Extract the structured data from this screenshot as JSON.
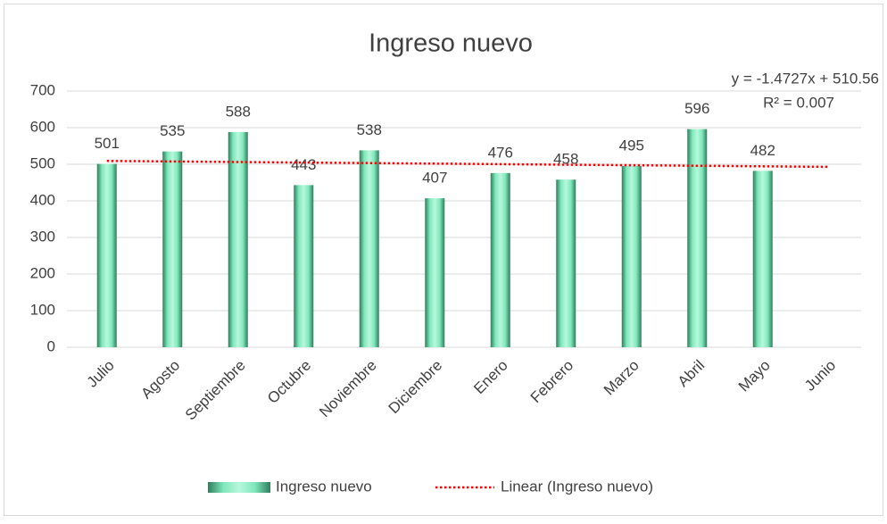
{
  "chart_data": {
    "type": "bar",
    "title": "Ingreso nuevo",
    "categories": [
      "Julio",
      "Agosto",
      "Septiembre",
      "Octubre",
      "Noviembre",
      "Diciembre",
      "Enero",
      "Febrero",
      "Marzo",
      "Abril",
      "Mayo",
      "Junio"
    ],
    "series": [
      {
        "name": "Ingreso nuevo",
        "color": "#5fd9a4",
        "values": [
          501,
          535,
          588,
          443,
          538,
          407,
          476,
          458,
          495,
          596,
          482,
          null
        ]
      }
    ],
    "trendline": {
      "name": "Linear (Ingreso nuevo)",
      "color": "#ff0000",
      "slope": -1.4727,
      "intercept": 510.56,
      "equation": "y = -1.4727x + 510.56",
      "r_squared": 0.007,
      "r_squared_label": "R² = 0.007"
    },
    "ylim": [
      0,
      700
    ],
    "yticks": [
      0,
      100,
      200,
      300,
      400,
      500,
      600,
      700
    ],
    "grid": true,
    "legend": "bottom"
  }
}
